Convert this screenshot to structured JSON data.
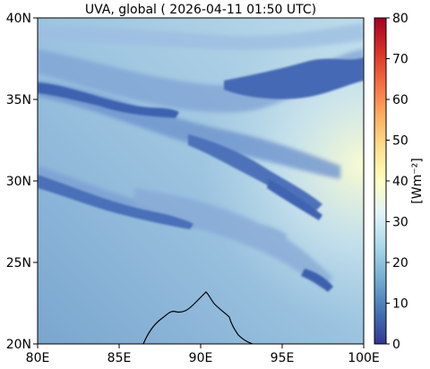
{
  "title": "UVA, global ( 2026-04-11 01:50 UTC)",
  "map": {
    "x_ticks": [
      "80E",
      "85E",
      "90E",
      "95E",
      "100E"
    ],
    "x_tick_values": [
      80,
      85,
      90,
      95,
      100
    ],
    "y_ticks": [
      "20N",
      "25N",
      "30N",
      "35N",
      "40N"
    ],
    "y_tick_values": [
      20,
      25,
      30,
      35,
      40
    ],
    "lon_range": [
      80,
      100
    ],
    "lat_range": [
      20,
      40
    ],
    "coastline_color": "#000000"
  },
  "colorbar": {
    "label": "[Wm⁻²]",
    "ticks": [
      "0",
      "10",
      "20",
      "30",
      "40",
      "50",
      "60",
      "70",
      "80"
    ],
    "tick_values": [
      0,
      10,
      20,
      30,
      40,
      50,
      60,
      70,
      80
    ],
    "range": [
      0,
      80
    ],
    "colormap": [
      "#313695",
      "#4575b4",
      "#74add1",
      "#abd9e9",
      "#e0f3f8",
      "#ffffbf",
      "#fee090",
      "#fdae61",
      "#f46d43",
      "#d73027",
      "#a50026"
    ]
  }
}
